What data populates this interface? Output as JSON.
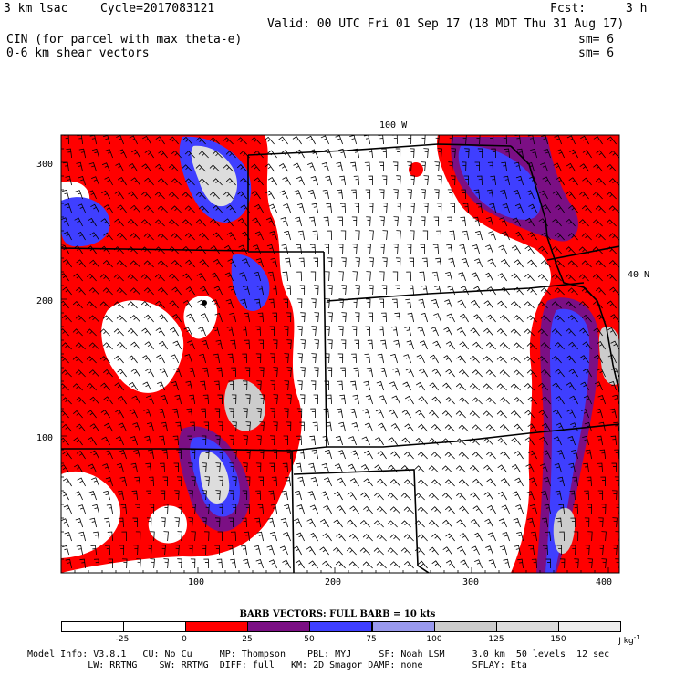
{
  "header": {
    "model": "3 km lsac",
    "cycle": "Cycle=2017083121",
    "fcst_label": "Fcst:",
    "fcst_value": "3 h",
    "valid": "Valid: 00 UTC Fri 01 Sep 17 (18 MDT Thu 31 Aug 17)",
    "field1": "CIN (for parcel with max theta-e)",
    "field2": "0-6 km shear vectors",
    "sm1": "sm= 6",
    "sm2": "sm= 6"
  },
  "map": {
    "lon_label": "100 W",
    "lat_label": "40 N",
    "x_ticks": [
      "100",
      "200",
      "300",
      "400"
    ],
    "y_ticks": [
      "300",
      "200",
      "100"
    ]
  },
  "legend": {
    "title": "BARB VECTORS:  FULL BARB = 10 kts",
    "ticks": [
      "-25",
      "0",
      "25",
      "50",
      "75",
      "100",
      "125",
      "150"
    ],
    "unit": "J kg",
    "unit_sup": "-1",
    "colors": [
      "#ffffff",
      "#ffffff",
      "#ff0000",
      "#7b0f84",
      "#3f3fff",
      "#9999ee",
      "#cccccc",
      "#dddddd",
      "#eeeeee"
    ]
  },
  "model_info": {
    "line1": "Model Info: V3.8.1   CU: No Cu     MP: Thompson    PBL: MYJ     SF: Noah LSM     3.0 km  50 levels  12 sec",
    "line2": "           LW: RRTMG    SW: RRTMG  DIFF: full   KM: 2D Smagor DAMP: none         SFLAY: Eta"
  }
}
